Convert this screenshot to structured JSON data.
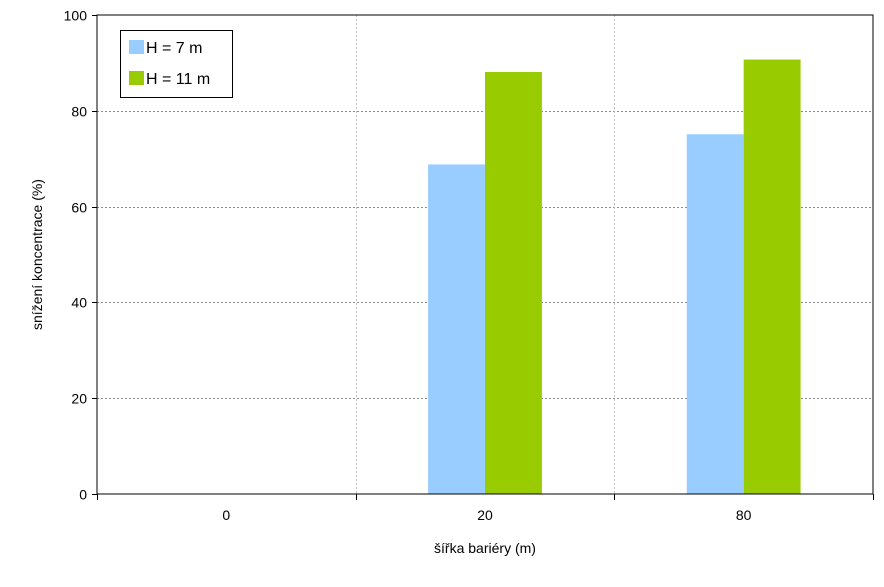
{
  "chart_data": {
    "type": "bar",
    "categories": [
      "0",
      "20",
      "80"
    ],
    "series": [
      {
        "name": "H = 7 m",
        "color": "#99ccff",
        "values": [
          0,
          68.8,
          75.1
        ]
      },
      {
        "name": "H = 11 m",
        "color": "#99cc00",
        "values": [
          0,
          88.1,
          90.7
        ]
      }
    ],
    "xlabel": "šířka bariéry (m)",
    "ylabel": "snížení koncentrace  (%)",
    "ylim": [
      0,
      100
    ],
    "yticks": [
      0,
      20,
      40,
      60,
      80,
      100
    ],
    "grid": true,
    "legend": "top-left"
  }
}
